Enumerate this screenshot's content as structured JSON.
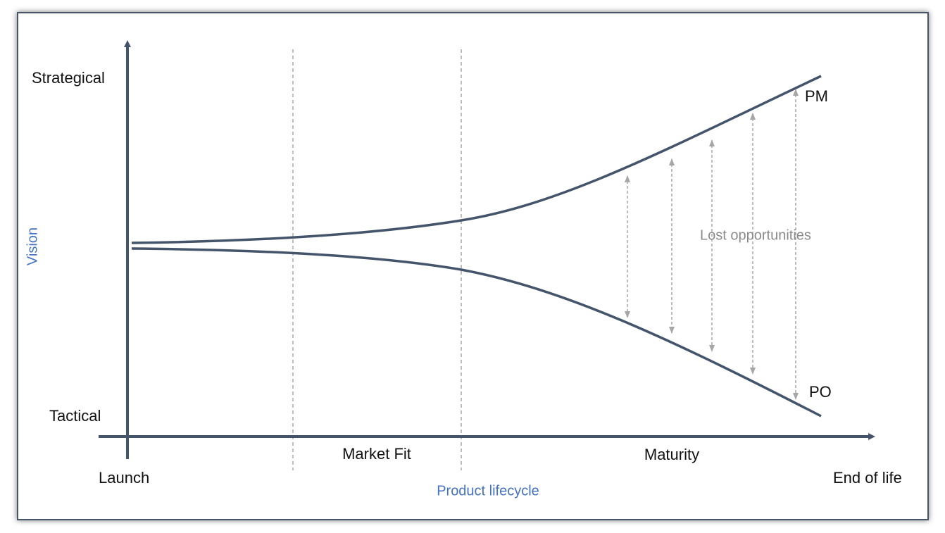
{
  "axes": {
    "y_top": "Strategical",
    "y_bottom": "Tactical",
    "y_title": "Vision",
    "x_start": "Launch",
    "x_end": "End of life",
    "x_title": "Product lifecycle"
  },
  "phases": [
    "Market Fit",
    "Maturity"
  ],
  "curves": {
    "upper": "PM",
    "lower": "PO"
  },
  "annotation": "Lost opportunities"
}
